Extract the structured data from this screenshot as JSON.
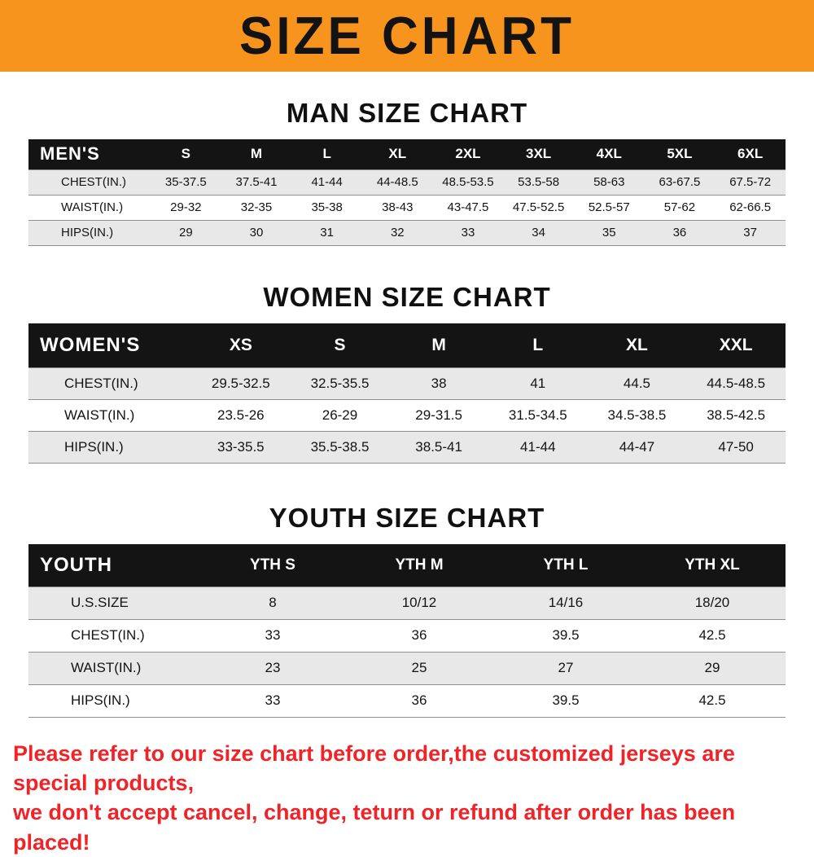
{
  "banner": {
    "title": "SIZE CHART",
    "bg_color": "#f7941d",
    "text_color": "#131313"
  },
  "sections": [
    {
      "id": "men",
      "heading": "MAN SIZE CHART",
      "table": {
        "label": "MEN'S",
        "columns": [
          "S",
          "M",
          "L",
          "XL",
          "2XL",
          "3XL",
          "4XL",
          "5XL",
          "6XL"
        ],
        "rows": [
          {
            "label": "CHEST(IN.)",
            "values": [
              "35-37.5",
              "37.5-41",
              "41-44",
              "44-48.5",
              "48.5-53.5",
              "53.5-58",
              "58-63",
              "63-67.5",
              "67.5-72"
            ]
          },
          {
            "label": "WAIST(IN.)",
            "values": [
              "29-32",
              "32-35",
              "35-38",
              "38-43",
              "43-47.5",
              "47.5-52.5",
              "52.5-57",
              "57-62",
              "62-66.5"
            ]
          },
          {
            "label": "HIPS(IN.)",
            "values": [
              "29",
              "30",
              "31",
              "32",
              "33",
              "34",
              "35",
              "36",
              "37"
            ]
          }
        ]
      }
    },
    {
      "id": "women",
      "heading": "WOMEN SIZE CHART",
      "table": {
        "label": "WOMEN'S",
        "columns": [
          "XS",
          "S",
          "M",
          "L",
          "XL",
          "XXL"
        ],
        "rows": [
          {
            "label": "CHEST(IN.)",
            "values": [
              "29.5-32.5",
              "32.5-35.5",
              "38",
              "41",
              "44.5",
              "44.5-48.5"
            ]
          },
          {
            "label": "WAIST(IN.)",
            "values": [
              "23.5-26",
              "26-29",
              "29-31.5",
              "31.5-34.5",
              "34.5-38.5",
              "38.5-42.5"
            ]
          },
          {
            "label": "HIPS(IN.)",
            "values": [
              "33-35.5",
              "35.5-38.5",
              "38.5-41",
              "41-44",
              "44-47",
              "47-50"
            ]
          }
        ]
      }
    },
    {
      "id": "youth",
      "heading": "YOUTH SIZE CHART",
      "table": {
        "label": "YOUTH",
        "columns": [
          "YTH S",
          "YTH M",
          "YTH L",
          "YTH XL"
        ],
        "rows": [
          {
            "label": "U.S.SIZE",
            "values": [
              "8",
              "10/12",
              "14/16",
              "18/20"
            ]
          },
          {
            "label": "CHEST(IN.)",
            "values": [
              "33",
              "36",
              "39.5",
              "42.5"
            ]
          },
          {
            "label": "WAIST(IN.)",
            "values": [
              "23",
              "25",
              "27",
              "29"
            ]
          },
          {
            "label": "HIPS(IN.)",
            "values": [
              "33",
              "36",
              "39.5",
              "42.5"
            ]
          }
        ]
      }
    }
  ],
  "footer": {
    "text_color": "#ef2428",
    "lines": [
      "Please refer to our size chart before order,the customized jerseys are special products,",
      "we don't accept cancel, change, teturn or refund after order has been placed!"
    ]
  }
}
